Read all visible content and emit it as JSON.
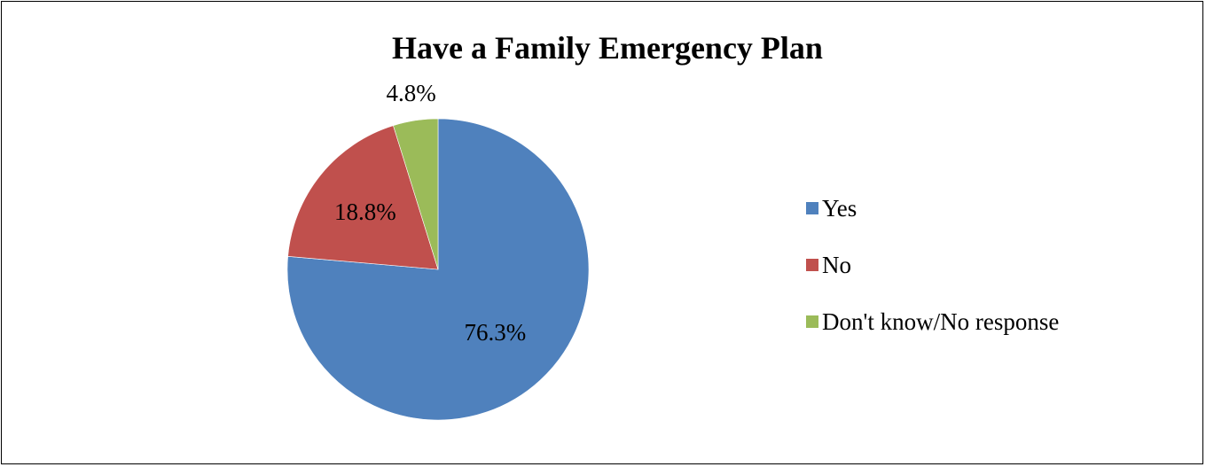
{
  "chart_data": {
    "type": "pie",
    "title": "Have a Family Emergency Plan",
    "slices": [
      {
        "label": "Yes",
        "value": 76.3,
        "display": "76.3%",
        "color": "#4F81BD"
      },
      {
        "label": "No",
        "value": 18.8,
        "display": "18.8%",
        "color": "#C0504D"
      },
      {
        "label": "Don't know/No response",
        "value": 4.8,
        "display": "4.8%",
        "color": "#9BBB59"
      }
    ],
    "legend_position": "right",
    "start_angle": "12 o'clock",
    "direction": "clockwise"
  }
}
